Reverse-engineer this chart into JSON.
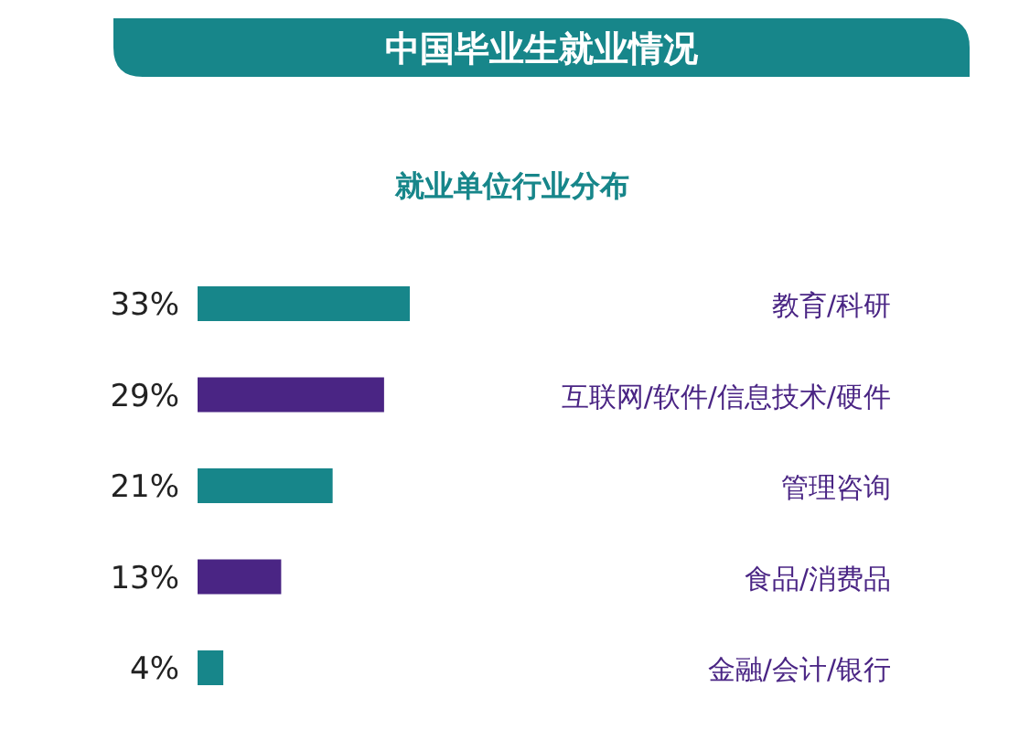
{
  "chart_data": {
    "type": "bar",
    "orientation": "horizontal",
    "title": "中国毕业生就业情况",
    "subtitle": "就业单位行业分布",
    "categories": [
      "教育/科研",
      "互联网/软件/信息技术/硬件",
      "管理咨询",
      "食品/消费品",
      "金融/会计/银行"
    ],
    "values": [
      33,
      29,
      21,
      13,
      4
    ],
    "value_labels": [
      "33%",
      "29%",
      "21%",
      "13%",
      "4%"
    ],
    "colors": [
      "#17868a",
      "#4a2584",
      "#17868a",
      "#4a2584",
      "#17868a"
    ]
  }
}
